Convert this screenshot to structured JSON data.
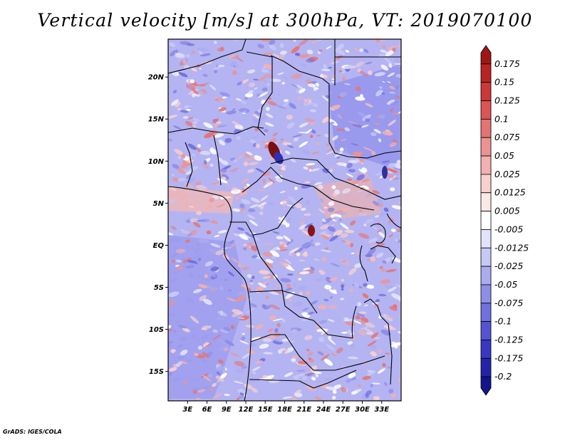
{
  "title": "Vertical velocity [m/s] at 300hPa, VT: 2019070100",
  "credit": "GrADS: IGES/COLA",
  "map": {
    "lon_range": [
      0,
      36
    ],
    "lat_range": [
      -18.5,
      24.5
    ],
    "lat_ticks": [
      "20N",
      "15N",
      "10N",
      "5N",
      "EQ",
      "5S",
      "10S",
      "15S"
    ],
    "lon_ticks": [
      "3E",
      "6E",
      "9E",
      "12E",
      "15E",
      "18E",
      "21E",
      "24E",
      "27E",
      "30E",
      "33E"
    ],
    "dominant_colors": {
      "ascent_blue": "#8a8cf0",
      "descent_red": "#e89a9a",
      "neutral": "#ffffff"
    }
  },
  "colorbar": {
    "labels": [
      "0.175",
      "0.15",
      "0.125",
      "0.1",
      "0.075",
      "0.05",
      "0.025",
      "0.0125",
      "0.005",
      "-0.005",
      "-0.0125",
      "-0.025",
      "-0.05",
      "-0.075",
      "-0.1",
      "-0.125",
      "-0.175",
      "-0.2"
    ],
    "colors": [
      "#a01616",
      "#b82424",
      "#cc3838",
      "#dc5454",
      "#e47474",
      "#ec9292",
      "#f2b0b0",
      "#f8d0d0",
      "#fde8e8",
      "#ffffff",
      "#e2e2fa",
      "#c8c8f6",
      "#ababf0",
      "#8e8ee8",
      "#7070de",
      "#5454d2",
      "#3838c2",
      "#2424aa",
      "#14148c"
    ]
  }
}
